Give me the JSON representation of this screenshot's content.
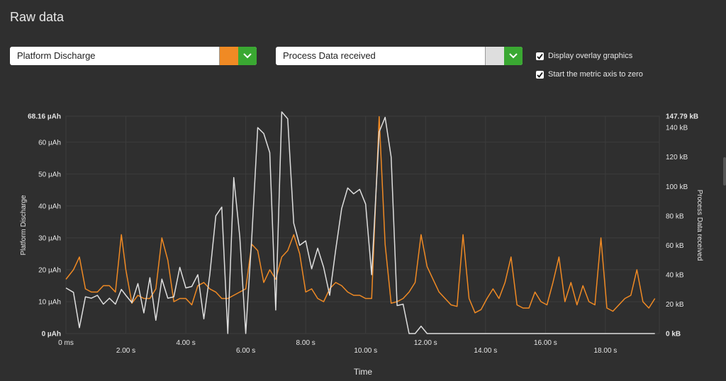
{
  "header": {
    "title": "Raw data"
  },
  "controls": {
    "left_metric": {
      "label": "Platform Discharge",
      "color": "#f08a24"
    },
    "right_metric": {
      "label": "Process Data received",
      "color": "#dedede"
    },
    "overlay_label": "Display overlay graphics",
    "zero_label": "Start the metric axis to zero"
  },
  "chart_data": {
    "type": "line",
    "xlabel": "Time",
    "ylabel_left": "Platform Discharge",
    "ylabel_right": "Process Data received",
    "xlim": [
      0,
      19.8
    ],
    "ylim_left": [
      0,
      68.16
    ],
    "ylim_right": [
      0,
      147.79
    ],
    "x_ticks": [
      {
        "v": 0,
        "label": "0 ms"
      },
      {
        "v": 2,
        "label": "2.00 s"
      },
      {
        "v": 4,
        "label": "4.00 s"
      },
      {
        "v": 6,
        "label": "6.00 s"
      },
      {
        "v": 8,
        "label": "8.00 s"
      },
      {
        "v": 10,
        "label": "10.00 s"
      },
      {
        "v": 12,
        "label": "12.00 s"
      },
      {
        "v": 14,
        "label": "14.00 s"
      },
      {
        "v": 16,
        "label": "16.00 s"
      },
      {
        "v": 18,
        "label": "18.00 s"
      }
    ],
    "y_left_ticks": [
      {
        "v": 0,
        "label": "0 µAh",
        "bold": true
      },
      {
        "v": 10,
        "label": "10 µAh"
      },
      {
        "v": 20,
        "label": "20 µAh"
      },
      {
        "v": 30,
        "label": "30 µAh"
      },
      {
        "v": 40,
        "label": "40 µAh"
      },
      {
        "v": 50,
        "label": "50 µAh"
      },
      {
        "v": 60,
        "label": "60 µAh"
      },
      {
        "v": 68.16,
        "label": "68.16 µAh",
        "bold": true
      }
    ],
    "y_right_ticks": [
      {
        "v": 0,
        "label": "0 kB",
        "bold": true
      },
      {
        "v": 20,
        "label": "20 kB"
      },
      {
        "v": 40,
        "label": "40 kB"
      },
      {
        "v": 60,
        "label": "60 kB"
      },
      {
        "v": 80,
        "label": "80 kB"
      },
      {
        "v": 100,
        "label": "100 kB"
      },
      {
        "v": 120,
        "label": "120 kB"
      },
      {
        "v": 140,
        "label": "140 kB"
      },
      {
        "v": 147.79,
        "label": "147.79 kB",
        "bold": true
      }
    ],
    "grid": true,
    "series": [
      {
        "name": "Platform Discharge",
        "axis": "left",
        "color": "#f08a24",
        "x": [
          0,
          0.25,
          0.45,
          0.65,
          0.85,
          1.05,
          1.25,
          1.45,
          1.65,
          1.85,
          2.0,
          2.2,
          2.4,
          2.6,
          2.8,
          3.0,
          3.2,
          3.4,
          3.6,
          3.8,
          4.0,
          4.2,
          4.4,
          4.6,
          4.8,
          5.0,
          5.2,
          5.4,
          5.6,
          5.8,
          6.0,
          6.2,
          6.4,
          6.6,
          6.8,
          7.0,
          7.2,
          7.4,
          7.6,
          7.8,
          8.0,
          8.2,
          8.4,
          8.6,
          8.8,
          9.0,
          9.2,
          9.4,
          9.6,
          9.8,
          10.0,
          10.2,
          10.45,
          10.65,
          10.85,
          11.05,
          11.25,
          11.45,
          11.65,
          11.85,
          12.05,
          12.25,
          12.45,
          12.65,
          12.85,
          13.05,
          13.25,
          13.45,
          13.65,
          13.85,
          14.05,
          14.25,
          14.45,
          14.65,
          14.85,
          15.05,
          15.25,
          15.45,
          15.65,
          15.85,
          16.05,
          16.25,
          16.45,
          16.65,
          16.85,
          17.05,
          17.25,
          17.45,
          17.65,
          17.85,
          18.05,
          18.25,
          18.45,
          18.65,
          18.85,
          19.05,
          19.25,
          19.45,
          19.65
        ],
        "y": [
          17,
          20,
          24,
          14,
          13,
          13,
          15,
          15,
          13,
          31,
          20,
          9.5,
          12,
          11,
          11,
          14,
          30,
          23,
          10,
          11,
          11,
          9,
          15,
          16,
          14,
          13,
          11,
          11,
          12,
          13,
          14,
          28,
          26,
          16,
          20,
          17,
          24,
          26,
          31,
          25,
          13,
          14,
          11,
          10,
          14,
          16,
          15,
          13,
          12,
          12,
          11,
          11,
          68,
          28,
          9.5,
          10,
          11,
          13,
          16,
          31,
          21,
          17,
          13,
          11,
          9,
          8.5,
          31,
          11,
          6.5,
          7.5,
          11,
          14,
          11,
          16,
          24,
          9,
          8,
          8,
          13,
          10,
          9,
          16,
          24,
          10,
          16,
          9,
          15,
          10,
          9,
          30,
          8,
          7,
          9,
          11,
          12,
          20,
          10,
          8,
          11
        ]
      },
      {
        "name": "Process Data received",
        "axis": "right",
        "color": "#dedede",
        "x": [
          0,
          0.25,
          0.45,
          0.65,
          0.85,
          1.05,
          1.25,
          1.45,
          1.65,
          1.85,
          2.0,
          2.2,
          2.4,
          2.6,
          2.8,
          3.0,
          3.2,
          3.4,
          3.6,
          3.8,
          4.0,
          4.2,
          4.4,
          4.6,
          4.8,
          5.0,
          5.2,
          5.4,
          5.6,
          5.8,
          6.0,
          6.2,
          6.4,
          6.6,
          6.8,
          7.0,
          7.2,
          7.4,
          7.6,
          7.8,
          8.0,
          8.2,
          8.4,
          8.6,
          8.8,
          9.0,
          9.2,
          9.4,
          9.6,
          9.8,
          10.0,
          10.2,
          10.45,
          10.65,
          10.85,
          11.05,
          11.25,
          11.45,
          11.65,
          11.85,
          12.05,
          12.25,
          12.45,
          12.65,
          12.85,
          13.05,
          13.25,
          13.45,
          13.65,
          13.85,
          14.05,
          14.25,
          14.45,
          14.65,
          14.85,
          15.05,
          15.25,
          15.45,
          15.65,
          15.85,
          16.05,
          16.25,
          16.45,
          16.65,
          16.85,
          17.05,
          17.25,
          17.45,
          17.65,
          17.85,
          18.05,
          18.25,
          18.45,
          18.65,
          18.85,
          19.05,
          19.25,
          19.45,
          19.65
        ],
        "y": [
          31,
          28,
          4,
          25,
          24,
          26,
          20,
          24,
          20,
          30,
          26,
          21,
          34,
          14,
          38,
          9,
          37,
          24,
          25,
          45,
          31,
          32,
          40,
          10,
          40,
          80,
          86,
          0,
          106,
          66,
          0,
          65,
          140,
          136,
          123,
          16,
          151,
          146,
          75,
          60,
          63,
          44,
          58,
          45,
          26,
          57,
          85,
          99,
          95,
          98,
          88,
          40,
          137,
          147,
          120,
          19,
          20,
          0,
          0,
          5,
          0,
          0,
          0,
          0,
          0,
          0,
          0,
          0,
          0,
          0,
          0,
          0,
          0,
          0,
          0,
          0,
          0,
          0,
          0,
          0,
          0,
          0,
          0,
          0,
          0,
          0,
          0,
          0,
          0,
          0,
          0,
          0,
          0,
          0,
          0,
          0,
          0,
          0,
          0
        ]
      }
    ]
  }
}
